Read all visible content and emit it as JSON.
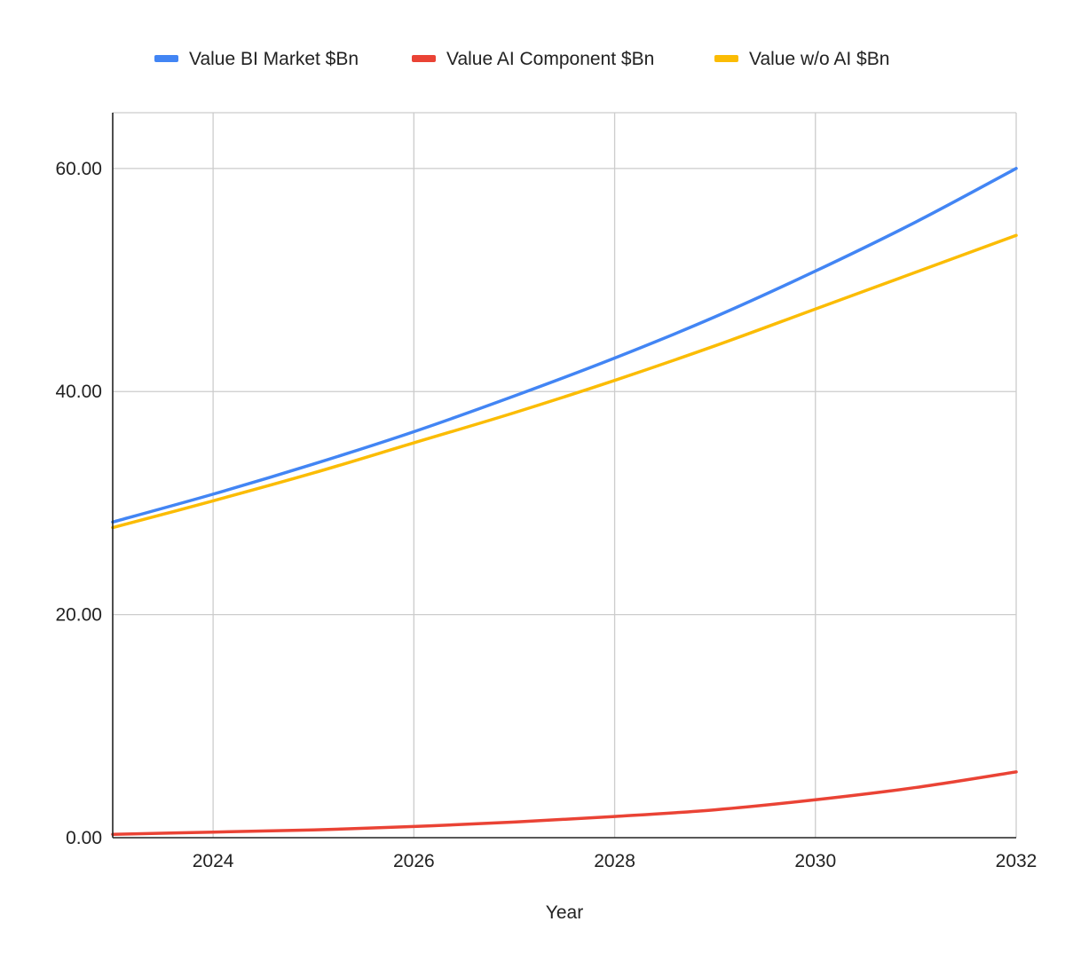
{
  "chart_data": {
    "type": "line",
    "title": "",
    "xlabel": "Year",
    "ylabel": "",
    "xlim": [
      2023,
      2032
    ],
    "ylim": [
      0,
      65
    ],
    "x_ticks": [
      2024,
      2026,
      2028,
      2030,
      2032
    ],
    "x_tick_labels": [
      "2024",
      "2026",
      "2028",
      "2030",
      "2032"
    ],
    "y_ticks": [
      0,
      20,
      40,
      60
    ],
    "y_tick_labels": [
      "0.00",
      "20.00",
      "40.00",
      "60.00"
    ],
    "grid": true,
    "legend_position": "top",
    "x": [
      2023,
      2024,
      2025,
      2026,
      2027,
      2028,
      2029,
      2030,
      2031,
      2032
    ],
    "series": [
      {
        "name": "Value BI Market $Bn",
        "color": "#4285f4",
        "values": [
          28.3,
          30.8,
          33.5,
          36.4,
          39.6,
          43.0,
          46.7,
          50.8,
          55.2,
          60.0
        ]
      },
      {
        "name": "Value AI Component $Bn",
        "color": "#ea4335",
        "values": [
          0.3,
          0.5,
          0.7,
          1.0,
          1.4,
          1.9,
          2.5,
          3.4,
          4.5,
          5.9
        ]
      },
      {
        "name": "Value w/o AI $Bn",
        "color": "#fbbc04",
        "values": [
          27.8,
          30.2,
          32.7,
          35.4,
          38.1,
          41.0,
          44.1,
          47.4,
          50.7,
          54.0
        ]
      }
    ]
  }
}
